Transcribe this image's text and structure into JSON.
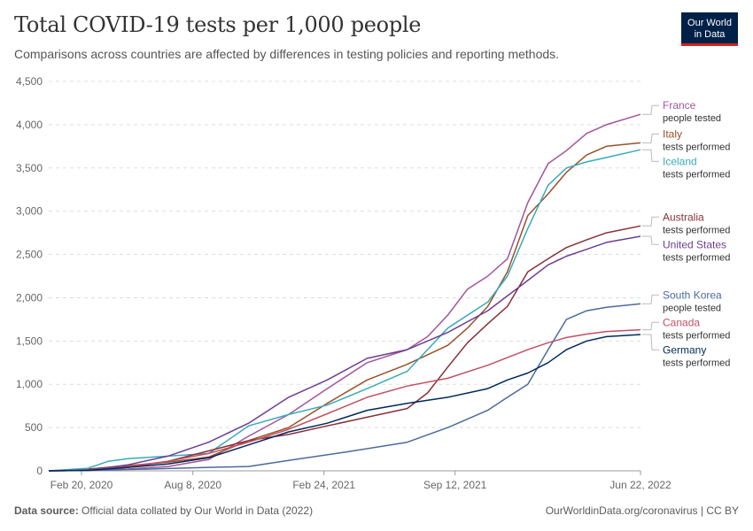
{
  "header": {
    "title": "Total COVID-19 tests per 1,000 people",
    "subtitle": "Comparisons across countries are affected by differences in testing policies and reporting methods."
  },
  "logo": {
    "line1": "Our World",
    "line2": "in Data"
  },
  "footer": {
    "source_label": "Data source:",
    "source_text": "Official data collated by Our World in Data (2022)",
    "right_text": "OurWorldinData.org/coronavirus | CC BY"
  },
  "chart_data": {
    "type": "line",
    "title": "Total COVID-19 tests per 1,000 people",
    "xlabel": "",
    "ylabel": "",
    "ylim": [
      0,
      4500
    ],
    "xlim": [
      "2020-01-01",
      "2022-06-22"
    ],
    "yticks": [
      0,
      500,
      1000,
      1500,
      2000,
      2500,
      3000,
      3500,
      4000,
      4500
    ],
    "ytick_labels": [
      "0",
      "500",
      "1,000",
      "1,500",
      "2,000",
      "2,500",
      "3,000",
      "3,500",
      "4,000",
      "4,500"
    ],
    "xticks": [
      "2020-02-20",
      "2020-08-08",
      "2021-02-24",
      "2021-09-12",
      "2022-06-22"
    ],
    "xtick_labels": [
      "Feb 20, 2020",
      "Aug 8, 2020",
      "Feb 24, 2021",
      "Sep 12, 2021",
      "Jun 22, 2022"
    ],
    "grid": "horizontal dashed",
    "legend": "right (inline labels at line ends)",
    "series": [
      {
        "name": "France",
        "desc": "people tested",
        "color": "#a2559c",
        "x": [
          "2020-01-01",
          "2020-03-01",
          "2020-05-01",
          "2020-07-01",
          "2020-09-01",
          "2020-11-01",
          "2021-01-01",
          "2021-03-01",
          "2021-05-01",
          "2021-07-01",
          "2021-08-01",
          "2021-09-01",
          "2021-10-01",
          "2021-11-01",
          "2021-12-01",
          "2022-01-01",
          "2022-02-01",
          "2022-03-01",
          "2022-04-01",
          "2022-05-01",
          "2022-06-22"
        ],
        "y": [
          0,
          5,
          20,
          50,
          130,
          400,
          650,
          950,
          1250,
          1400,
          1550,
          1800,
          2100,
          2250,
          2450,
          3100,
          3550,
          3700,
          3900,
          4000,
          4120
        ]
      },
      {
        "name": "Italy",
        "desc": "tests performed",
        "color": "#9a5129",
        "x": [
          "2020-01-01",
          "2020-03-01",
          "2020-05-01",
          "2020-07-01",
          "2020-09-01",
          "2020-11-01",
          "2021-01-01",
          "2021-03-01",
          "2021-05-01",
          "2021-07-01",
          "2021-09-01",
          "2021-10-01",
          "2021-11-01",
          "2021-12-01",
          "2022-01-01",
          "2022-02-01",
          "2022-03-01",
          "2022-04-01",
          "2022-05-01",
          "2022-06-22"
        ],
        "y": [
          0,
          20,
          60,
          100,
          160,
          350,
          500,
          780,
          1050,
          1230,
          1450,
          1650,
          1900,
          2300,
          2950,
          3200,
          3450,
          3650,
          3750,
          3790
        ]
      },
      {
        "name": "Iceland",
        "desc": "tests performed",
        "color": "#38aaba",
        "x": [
          "2020-01-01",
          "2020-03-01",
          "2020-04-01",
          "2020-05-01",
          "2020-07-01",
          "2020-09-01",
          "2020-11-01",
          "2021-01-01",
          "2021-03-01",
          "2021-05-01",
          "2021-07-01",
          "2021-09-01",
          "2021-11-01",
          "2021-12-01",
          "2022-01-01",
          "2022-02-01",
          "2022-03-01",
          "2022-04-01",
          "2022-05-01",
          "2022-06-22"
        ],
        "y": [
          0,
          30,
          110,
          140,
          170,
          200,
          520,
          650,
          760,
          950,
          1150,
          1650,
          1950,
          2250,
          2800,
          3300,
          3500,
          3570,
          3620,
          3710
        ]
      },
      {
        "name": "Australia",
        "desc": "tests performed",
        "color": "#883039",
        "x": [
          "2020-01-01",
          "2020-03-01",
          "2020-05-01",
          "2020-07-01",
          "2020-09-01",
          "2020-11-01",
          "2021-01-01",
          "2021-03-01",
          "2021-05-01",
          "2021-07-01",
          "2021-08-01",
          "2021-09-01",
          "2021-10-01",
          "2021-11-01",
          "2021-12-01",
          "2022-01-01",
          "2022-02-01",
          "2022-03-01",
          "2022-04-01",
          "2022-05-01",
          "2022-06-22"
        ],
        "y": [
          0,
          5,
          40,
          110,
          230,
          350,
          420,
          520,
          620,
          720,
          900,
          1200,
          1480,
          1700,
          1900,
          2300,
          2450,
          2580,
          2670,
          2750,
          2830
        ]
      },
      {
        "name": "United States",
        "desc": "tests performed",
        "color": "#6d3e91",
        "x": [
          "2020-01-01",
          "2020-03-01",
          "2020-05-01",
          "2020-07-01",
          "2020-09-01",
          "2020-11-01",
          "2021-01-01",
          "2021-03-01",
          "2021-05-01",
          "2021-07-01",
          "2021-09-01",
          "2021-11-01",
          "2022-01-01",
          "2022-02-01",
          "2022-03-01",
          "2022-04-01",
          "2022-05-01",
          "2022-06-22"
        ],
        "y": [
          0,
          10,
          70,
          170,
          330,
          550,
          850,
          1050,
          1300,
          1400,
          1600,
          1850,
          2200,
          2380,
          2480,
          2560,
          2640,
          2710
        ]
      },
      {
        "name": "South Korea",
        "desc": "people tested",
        "color": "#4c6a9c",
        "x": [
          "2020-01-01",
          "2020-03-01",
          "2020-06-01",
          "2020-09-01",
          "2020-11-01",
          "2021-01-01",
          "2021-04-01",
          "2021-07-01",
          "2021-09-01",
          "2021-11-01",
          "2021-12-01",
          "2022-01-01",
          "2022-02-01",
          "2022-03-01",
          "2022-04-01",
          "2022-05-01",
          "2022-06-22"
        ],
        "y": [
          0,
          5,
          20,
          40,
          50,
          120,
          220,
          330,
          500,
          700,
          850,
          1000,
          1400,
          1750,
          1850,
          1890,
          1930
        ]
      },
      {
        "name": "Canada",
        "desc": "tests performed",
        "color": "#c15065",
        "x": [
          "2020-01-01",
          "2020-03-01",
          "2020-05-01",
          "2020-07-01",
          "2020-09-01",
          "2020-11-01",
          "2021-01-01",
          "2021-03-01",
          "2021-05-01",
          "2021-07-01",
          "2021-09-01",
          "2021-11-01",
          "2022-01-01",
          "2022-02-01",
          "2022-03-01",
          "2022-04-01",
          "2022-05-01",
          "2022-06-22"
        ],
        "y": [
          0,
          5,
          50,
          110,
          200,
          330,
          480,
          660,
          850,
          980,
          1070,
          1220,
          1400,
          1480,
          1540,
          1580,
          1610,
          1630
        ]
      },
      {
        "name": "Germany",
        "desc": "tests performed",
        "color": "#00295b",
        "x": [
          "2020-01-01",
          "2020-03-01",
          "2020-05-01",
          "2020-07-01",
          "2020-09-01",
          "2020-11-01",
          "2021-01-01",
          "2021-03-01",
          "2021-05-01",
          "2021-07-01",
          "2021-09-01",
          "2021-11-01",
          "2021-12-01",
          "2022-01-01",
          "2022-02-01",
          "2022-03-01",
          "2022-04-01",
          "2022-05-01",
          "2022-06-22"
        ],
        "y": [
          0,
          5,
          40,
          80,
          150,
          300,
          450,
          550,
          700,
          780,
          850,
          950,
          1050,
          1130,
          1250,
          1400,
          1500,
          1550,
          1575
        ]
      }
    ]
  }
}
